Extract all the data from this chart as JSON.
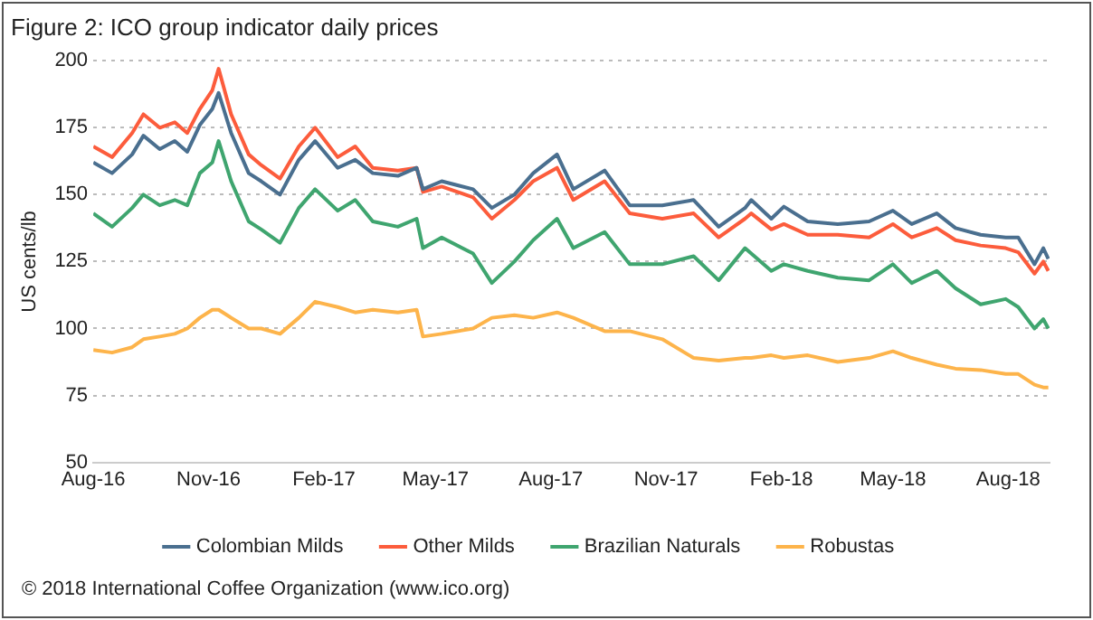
{
  "chart_data": {
    "type": "line",
    "title": "Figure 2: ICO group indicator daily prices",
    "ylabel": "US cents/lb",
    "annotations": [
      "© 2018 International Coffee Organization (www.ico.org)"
    ],
    "x": [
      "2016-08-01",
      "2016-08-16",
      "2016-09-01",
      "2016-09-10",
      "2016-09-23",
      "2016-10-05",
      "2016-10-15",
      "2016-10-25",
      "2016-11-04",
      "2016-11-09",
      "2016-11-19",
      "2016-12-03",
      "2016-12-13",
      "2016-12-28",
      "2017-01-12",
      "2017-01-25",
      "2017-02-12",
      "2017-02-26",
      "2017-03-12",
      "2017-04-01",
      "2017-04-16",
      "2017-04-21",
      "2017-05-06",
      "2017-05-31",
      "2017-06-15",
      "2017-07-03",
      "2017-07-18",
      "2017-08-06",
      "2017-08-19",
      "2017-09-13",
      "2017-10-03",
      "2017-10-29",
      "2017-11-23",
      "2017-12-13",
      "2018-01-03",
      "2018-01-08",
      "2018-01-24",
      "2018-02-03",
      "2018-02-22",
      "2018-03-18",
      "2018-04-12",
      "2018-05-01",
      "2018-05-16",
      "2018-06-05",
      "2018-06-20",
      "2018-07-10",
      "2018-07-30",
      "2018-08-09",
      "2018-08-22",
      "2018-08-29",
      "2018-09-02"
    ],
    "series": [
      {
        "name": "Colombian Milds",
        "color": "#4a6f8f",
        "values": [
          162,
          158,
          165,
          172,
          167,
          170,
          166,
          176,
          182,
          188,
          173,
          158,
          155,
          150,
          163,
          170,
          160,
          163,
          158,
          157,
          160,
          152,
          155,
          152,
          145,
          150,
          158,
          165,
          152,
          159,
          146,
          146,
          148,
          138,
          145,
          148,
          141,
          145.5,
          140,
          139,
          140,
          144,
          139,
          143,
          137.5,
          135,
          134,
          134,
          124,
          130,
          126
        ]
      },
      {
        "name": "Other Milds",
        "color": "#fc5c3c",
        "values": [
          168,
          164,
          173,
          180,
          175,
          177,
          173,
          182,
          189,
          197,
          180,
          165,
          161,
          156,
          168,
          175,
          164,
          168,
          160,
          159,
          160,
          151,
          153,
          149,
          141,
          148,
          155,
          160,
          148,
          155,
          143,
          141,
          143,
          134,
          141,
          143,
          137,
          139,
          135,
          135,
          134,
          139,
          134,
          137.5,
          133,
          131,
          130,
          128.5,
          120.5,
          125,
          121.5
        ]
      },
      {
        "name": "Brazilian Naturals",
        "color": "#3fa56f",
        "values": [
          143,
          138,
          145,
          150,
          146,
          148,
          146,
          158,
          162,
          170,
          155,
          140,
          137,
          132,
          145,
          152,
          144,
          148,
          140,
          138,
          141,
          130,
          134,
          128,
          117,
          125,
          133,
          141,
          130,
          136,
          124,
          124,
          127,
          118,
          130,
          128,
          121.5,
          124,
          121.5,
          119,
          118,
          124,
          117,
          121.5,
          115,
          109,
          111,
          108,
          100,
          103.5,
          100
        ]
      },
      {
        "name": "Robustas",
        "color": "#fdb44b",
        "values": [
          92,
          91,
          93,
          96,
          97,
          98,
          100,
          104,
          107,
          107,
          104,
          100,
          100,
          98,
          104,
          110,
          108,
          106,
          107,
          106,
          107,
          97,
          98,
          100,
          104,
          105,
          104,
          106,
          104,
          99,
          99,
          96,
          89,
          88,
          89,
          89,
          90,
          89,
          90,
          87.5,
          89,
          91.5,
          89,
          86.5,
          85,
          84.5,
          83,
          83,
          79,
          78,
          78
        ]
      }
    ],
    "xlim": [
      "2016-08-01",
      "2018-09-03"
    ],
    "xticks": [
      {
        "value": "2016-08-01",
        "label": "Aug-16"
      },
      {
        "value": "2016-11-01",
        "label": "Nov-16"
      },
      {
        "value": "2017-02-01",
        "label": "Feb-17"
      },
      {
        "value": "2017-05-01",
        "label": "May-17"
      },
      {
        "value": "2017-08-01",
        "label": "Aug-17"
      },
      {
        "value": "2017-11-01",
        "label": "Nov-17"
      },
      {
        "value": "2018-02-01",
        "label": "Feb-18"
      },
      {
        "value": "2018-05-01",
        "label": "May-18"
      },
      {
        "value": "2018-08-01",
        "label": "Aug-18"
      }
    ],
    "ylim": [
      50,
      200
    ],
    "yticks": [
      50,
      75,
      100,
      125,
      150,
      175,
      200
    ],
    "grid": "y",
    "legend": "bottom",
    "marker": "none",
    "line_style": "solid"
  }
}
